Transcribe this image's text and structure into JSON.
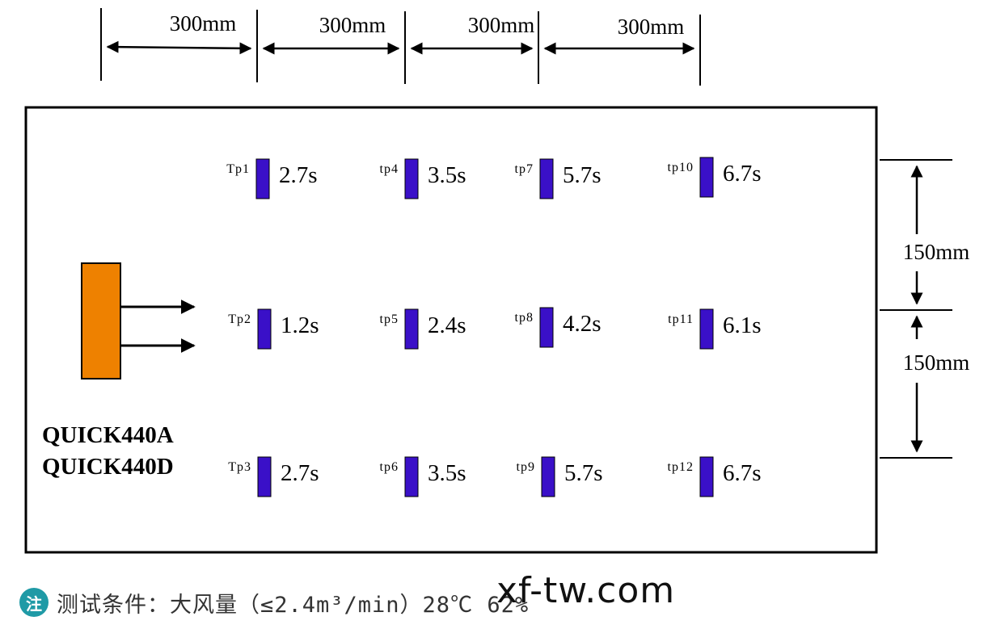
{
  "diagram": {
    "top_dimensions": [
      {
        "label": "300mm"
      },
      {
        "label": "300mm"
      },
      {
        "label": "300mm"
      },
      {
        "label": "300mm"
      }
    ],
    "side_dimensions": [
      {
        "label": "150mm"
      },
      {
        "label": "150mm"
      }
    ],
    "device": {
      "color": "#ee8100",
      "models": [
        "QUICK440A",
        "QUICK440D"
      ]
    },
    "sensor_color": "#3a10c8",
    "test_points": [
      {
        "id": "Tp1",
        "time": "2.7s"
      },
      {
        "id": "tp4",
        "time": "3.5s"
      },
      {
        "id": "tp7",
        "time": "5.7s"
      },
      {
        "id": "tp10",
        "time": "6.7s"
      },
      {
        "id": "Tp2",
        "time": "1.2s"
      },
      {
        "id": "tp5",
        "time": "2.4s"
      },
      {
        "id": "tp8",
        "time": "4.2s"
      },
      {
        "id": "tp11",
        "time": "6.1s"
      },
      {
        "id": "Tp3",
        "time": "2.7s"
      },
      {
        "id": "tp6",
        "time": "3.5s"
      },
      {
        "id": "tp9",
        "time": "5.7s"
      },
      {
        "id": "tp12",
        "time": "6.7s"
      }
    ]
  },
  "footer": {
    "badge": "注",
    "text": "测试条件：大风量（≤2.4m³/min）28℃ 62%"
  },
  "watermark": "xf-tw.com"
}
